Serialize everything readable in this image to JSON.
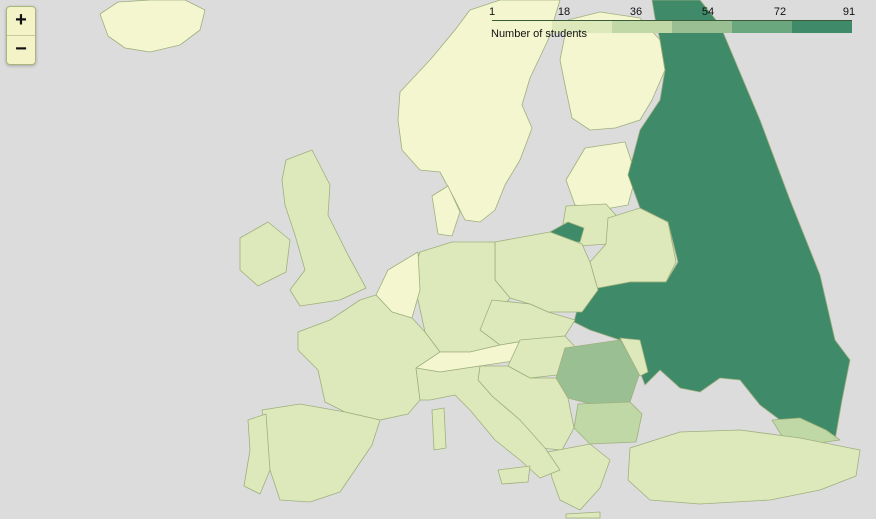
{
  "map": {
    "zoom_in_label": "+",
    "zoom_out_label": "−"
  },
  "legend": {
    "title": "Number of students",
    "ticks": [
      "1",
      "18",
      "36",
      "54",
      "72",
      "91"
    ],
    "colors": [
      "#f3f6cd",
      "#dde9bb",
      "#bfd8a6",
      "#9abf93",
      "#6aa77f",
      "#3f8a68"
    ]
  },
  "colors": {
    "sea": "#dcdcdc",
    "land_outside": "#f4f6cf",
    "border": "#9fb07d"
  }
}
